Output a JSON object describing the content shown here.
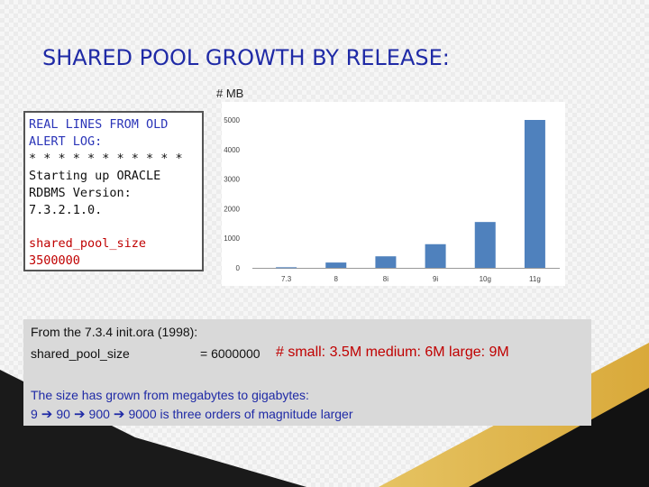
{
  "slide": {
    "title": "SHARED POOL GROWTH BY RELEASE:",
    "unit_label": "# MB"
  },
  "log": {
    "header1": "REAL LINES FROM OLD",
    "header2": "ALERT LOG:",
    "stars": "* * * * * * * * * * *",
    "line1": "Starting up ORACLE",
    "line2": "RDBMS Version:",
    "line3": "7.3.2.1.0.",
    "param_name": "shared_pool_size",
    "param_value": "3500000"
  },
  "info": {
    "line1": "From the 7.3.4 init.ora (1998):",
    "param": "shared_pool_size",
    "value": "= 6000000",
    "sizes": "# small: 3.5M  medium: 6M   large: 9M",
    "line3": "The size has grown from megabytes to gigabytes:",
    "seq": [
      "9",
      "90",
      "900",
      "9000 is three orders of magnitude larger"
    ]
  },
  "chart_data": {
    "type": "bar",
    "categories": [
      "7.3",
      "8",
      "8i",
      "9i",
      "10g",
      "11g"
    ],
    "values": [
      20,
      180,
      390,
      800,
      1550,
      5000
    ],
    "y_ticks": [
      0,
      1000,
      2000,
      3000,
      4000,
      5000
    ],
    "ylim": [
      0,
      5000
    ],
    "color": "#4f81bd",
    "grid": false,
    "ylabel": "# MB"
  }
}
